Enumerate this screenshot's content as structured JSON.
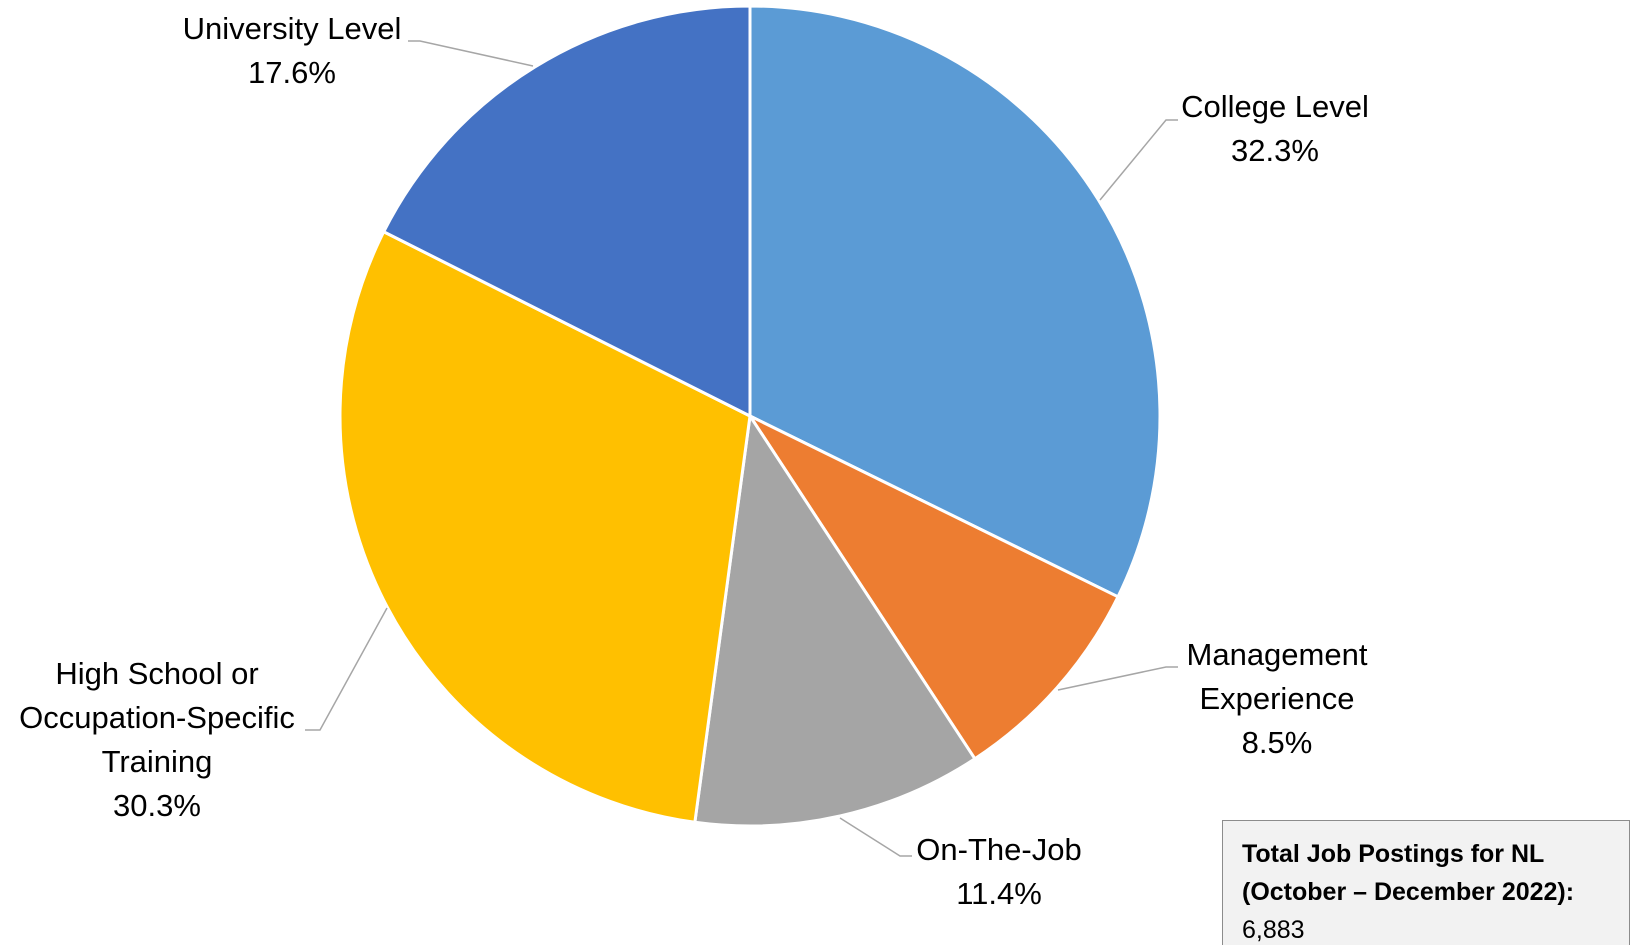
{
  "chart_data": {
    "type": "pie",
    "slices": [
      {
        "label_lines": [
          "College Level"
        ],
        "value": 32.3,
        "value_label": "32.3%",
        "color": "#5B9BD5"
      },
      {
        "label_lines": [
          "Management",
          "Experience"
        ],
        "value": 8.5,
        "value_label": "8.5%",
        "color": "#ED7D31"
      },
      {
        "label_lines": [
          "On-The-Job"
        ],
        "value": 11.4,
        "value_label": "11.4%",
        "color": "#A5A5A5"
      },
      {
        "label_lines": [
          "High School or",
          "Occupation-Specific",
          "Training"
        ],
        "value": 30.3,
        "value_label": "30.3%",
        "color": "#FFC000"
      },
      {
        "label_lines": [
          "University Level"
        ],
        "value": 17.6,
        "value_label": "17.6%",
        "color": "#4472C4"
      }
    ],
    "start_angle_deg": 0,
    "direction": "clockwise",
    "slice_border_color": "#ffffff",
    "leader_line_color": "#a6a6a6"
  },
  "total_box": {
    "title_line1": "Total Job Postings for NL",
    "title_line2": "(October – December 2022):",
    "value": "6,883"
  }
}
